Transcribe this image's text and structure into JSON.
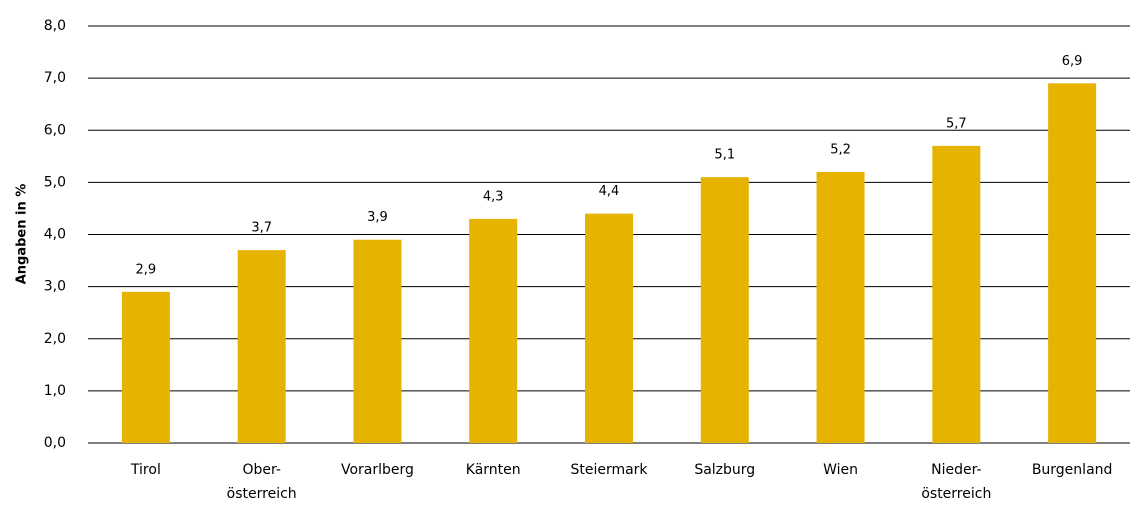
{
  "chart_data": {
    "type": "bar",
    "y_label": "Angaben in %",
    "categories": [
      "Tirol",
      "Ober-\nösterreich",
      "Vorarlberg",
      "Kärnten",
      "Steiermark",
      "Salzburg",
      "Wien",
      "Nieder-\nösterreich",
      "Burgenland"
    ],
    "values": [
      2.9,
      3.7,
      3.9,
      4.3,
      4.4,
      5.1,
      5.2,
      5.7,
      6.9
    ],
    "value_labels": [
      "2,9",
      "3,7",
      "3,9",
      "4,3",
      "4,4",
      "5,1",
      "5,2",
      "5,7",
      "6,9"
    ],
    "color": "#e6b400",
    "ylim": [
      0,
      8
    ],
    "yticks": [
      {
        "value": 0,
        "label": "0,0"
      },
      {
        "value": 1,
        "label": "1,0"
      },
      {
        "value": 2,
        "label": "2,0"
      },
      {
        "value": 3,
        "label": "3,0"
      },
      {
        "value": 4,
        "label": "4,0"
      },
      {
        "value": 5,
        "label": "5,0"
      },
      {
        "value": 6,
        "label": "6,0"
      },
      {
        "value": 7,
        "label": "7,0"
      },
      {
        "value": 8,
        "label": "8,0"
      }
    ],
    "grid": true
  }
}
